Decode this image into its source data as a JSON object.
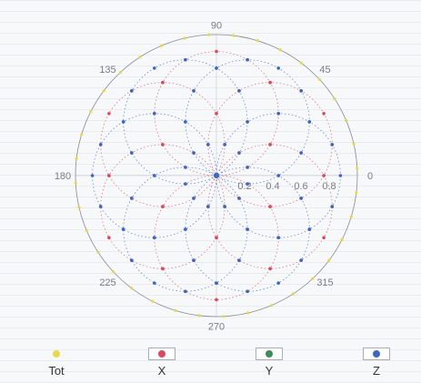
{
  "chart_data": {
    "type": "line",
    "subtype": "polar",
    "title": "",
    "angle_ticks": [
      0,
      45,
      90,
      135,
      180,
      225,
      270,
      315
    ],
    "radial_ticks": [
      0.2,
      0.4,
      0.6,
      0.8
    ],
    "radial_range": [
      0,
      1
    ],
    "grid": true,
    "legend_position": "bottom",
    "series": [
      {
        "name": "Tot",
        "color": "#e8d84a",
        "shape": "circle",
        "r": 1.0
      },
      {
        "name": "X",
        "color": "#d94a5a",
        "shape": "rose",
        "petal_count": 6,
        "petal_phase_deg": 90,
        "r_max": 0.88
      },
      {
        "name": "Y",
        "color": "#3e8a5a",
        "shape": "none"
      },
      {
        "name": "Z",
        "color": "#3a66c4",
        "shape": "rose",
        "petal_count": 6,
        "petal_phase_deg": 60,
        "r_max": 0.88
      }
    ]
  }
}
